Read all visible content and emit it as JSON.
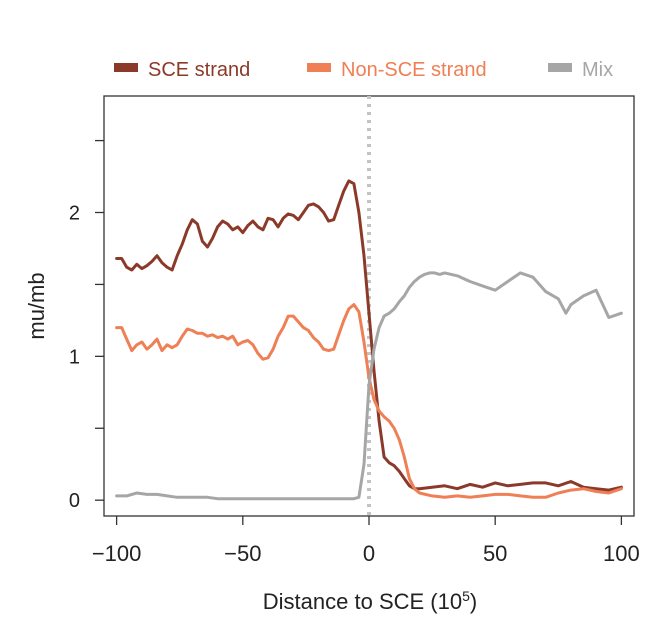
{
  "chart_data": {
    "type": "line",
    "title": "",
    "xlabel": "Distance to SCE (10",
    "xlabel_sup": "5",
    "xlabel_close": ")",
    "ylabel": "mu/mb",
    "xlim": [
      -105,
      105
    ],
    "ylim": [
      -0.11,
      2.81
    ],
    "x_ticks": [
      -100,
      -50,
      0,
      50,
      100
    ],
    "x_tick_labels": [
      "−100",
      "−50",
      "0",
      "50",
      "100"
    ],
    "y_ticks": [
      0,
      0.5,
      1,
      1.5,
      2,
      2.5
    ],
    "y_tick_labels": [
      "0",
      "",
      "1",
      "",
      "2",
      ""
    ],
    "vline": {
      "x": 0,
      "style": "dotted",
      "color": "#c4c4c4"
    },
    "legend_position": "top",
    "series": [
      {
        "name": "SCE strand",
        "color": "#8b3a2a",
        "x": [
          -100,
          -98,
          -96,
          -94,
          -92,
          -90,
          -88,
          -86,
          -84,
          -82,
          -80,
          -78,
          -76,
          -74,
          -72,
          -70,
          -68,
          -66,
          -64,
          -62,
          -60,
          -58,
          -56,
          -54,
          -52,
          -50,
          -48,
          -46,
          -44,
          -42,
          -40,
          -38,
          -36,
          -34,
          -32,
          -30,
          -28,
          -26,
          -24,
          -22,
          -20,
          -18,
          -16,
          -14,
          -12,
          -10,
          -8,
          -6,
          -4,
          -2,
          0,
          2,
          4,
          6,
          8,
          10,
          12,
          14,
          16,
          18,
          20,
          25,
          30,
          35,
          40,
          45,
          50,
          55,
          60,
          65,
          70,
          75,
          80,
          85,
          90,
          95,
          100
        ],
        "values": [
          1.68,
          1.68,
          1.62,
          1.6,
          1.64,
          1.61,
          1.63,
          1.66,
          1.7,
          1.65,
          1.62,
          1.6,
          1.7,
          1.78,
          1.88,
          1.95,
          1.92,
          1.8,
          1.76,
          1.82,
          1.9,
          1.94,
          1.92,
          1.88,
          1.9,
          1.86,
          1.91,
          1.94,
          1.9,
          1.88,
          1.96,
          1.95,
          1.9,
          1.96,
          1.99,
          1.98,
          1.95,
          2.0,
          2.05,
          2.06,
          2.04,
          2.0,
          1.94,
          1.95,
          2.05,
          2.15,
          2.22,
          2.2,
          2.0,
          1.7,
          1.3,
          0.9,
          0.55,
          0.3,
          0.26,
          0.24,
          0.2,
          0.15,
          0.1,
          0.08,
          0.08,
          0.09,
          0.1,
          0.08,
          0.11,
          0.09,
          0.12,
          0.1,
          0.11,
          0.12,
          0.12,
          0.1,
          0.13,
          0.09,
          0.08,
          0.07,
          0.09
        ]
      },
      {
        "name": "Non-SCE strand",
        "color": "#ef7f55",
        "x": [
          -100,
          -98,
          -96,
          -94,
          -92,
          -90,
          -88,
          -86,
          -84,
          -82,
          -80,
          -78,
          -76,
          -74,
          -72,
          -70,
          -68,
          -66,
          -64,
          -62,
          -60,
          -58,
          -56,
          -54,
          -52,
          -50,
          -48,
          -46,
          -44,
          -42,
          -40,
          -38,
          -36,
          -34,
          -32,
          -30,
          -28,
          -26,
          -24,
          -22,
          -20,
          -18,
          -16,
          -14,
          -12,
          -10,
          -8,
          -6,
          -4,
          -2,
          0,
          2,
          4,
          6,
          8,
          10,
          12,
          14,
          16,
          18,
          20,
          25,
          30,
          35,
          40,
          45,
          50,
          55,
          60,
          65,
          70,
          75,
          80,
          85,
          90,
          95,
          100
        ],
        "values": [
          1.2,
          1.2,
          1.12,
          1.04,
          1.08,
          1.1,
          1.05,
          1.08,
          1.12,
          1.04,
          1.08,
          1.06,
          1.08,
          1.14,
          1.19,
          1.18,
          1.16,
          1.16,
          1.14,
          1.15,
          1.13,
          1.14,
          1.12,
          1.14,
          1.08,
          1.1,
          1.11,
          1.08,
          1.02,
          0.98,
          0.99,
          1.05,
          1.14,
          1.2,
          1.28,
          1.28,
          1.24,
          1.2,
          1.18,
          1.13,
          1.1,
          1.05,
          1.04,
          1.05,
          1.15,
          1.25,
          1.33,
          1.36,
          1.31,
          1.1,
          0.85,
          0.7,
          0.62,
          0.58,
          0.55,
          0.5,
          0.42,
          0.3,
          0.15,
          0.08,
          0.05,
          0.03,
          0.02,
          0.03,
          0.02,
          0.03,
          0.04,
          0.04,
          0.03,
          0.02,
          0.02,
          0.05,
          0.07,
          0.08,
          0.06,
          0.05,
          0.08
        ]
      },
      {
        "name": "Mix",
        "color": "#a6a6a6",
        "x": [
          -100,
          -96,
          -92,
          -88,
          -84,
          -80,
          -76,
          -72,
          -68,
          -64,
          -60,
          -56,
          -52,
          -48,
          -44,
          -40,
          -36,
          -32,
          -28,
          -24,
          -20,
          -16,
          -12,
          -8,
          -6,
          -4,
          -2,
          0,
          2,
          4,
          6,
          8,
          10,
          12,
          14,
          16,
          18,
          20,
          22,
          24,
          26,
          28,
          30,
          35,
          40,
          45,
          50,
          55,
          60,
          65,
          70,
          75,
          78,
          80,
          85,
          90,
          95,
          100
        ],
        "values": [
          0.03,
          0.03,
          0.05,
          0.04,
          0.04,
          0.03,
          0.02,
          0.02,
          0.02,
          0.02,
          0.01,
          0.01,
          0.01,
          0.01,
          0.01,
          0.01,
          0.01,
          0.01,
          0.01,
          0.01,
          0.01,
          0.01,
          0.01,
          0.01,
          0.01,
          0.02,
          0.25,
          0.8,
          1.05,
          1.2,
          1.28,
          1.3,
          1.33,
          1.38,
          1.42,
          1.48,
          1.52,
          1.55,
          1.57,
          1.58,
          1.58,
          1.57,
          1.58,
          1.56,
          1.52,
          1.49,
          1.46,
          1.52,
          1.58,
          1.55,
          1.45,
          1.4,
          1.3,
          1.36,
          1.42,
          1.46,
          1.27,
          1.3
        ]
      }
    ]
  }
}
